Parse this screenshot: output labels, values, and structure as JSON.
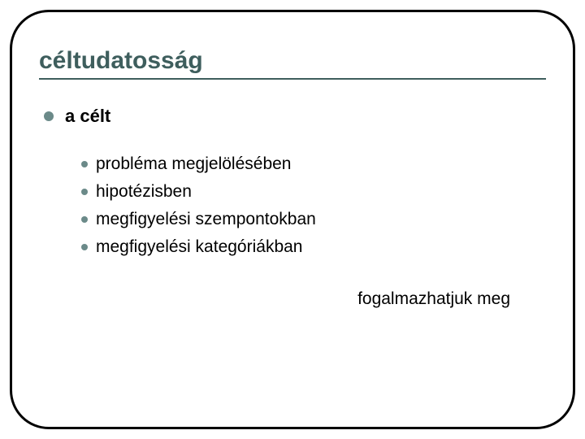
{
  "slide": {
    "title": "céltudatosság",
    "level1_text": "a célt",
    "level2_items": [
      "probléma megjelölésében",
      "hipotézisben",
      "megfigyelési szempontokban",
      "megfigyelési kategóriákban"
    ],
    "footer": "fogalmazhatjuk meg"
  },
  "style": {
    "frame_border_color": "#000000",
    "frame_border_width": 3,
    "frame_border_radius": 48,
    "title_color": "#3e5e5d",
    "title_fontsize": 30,
    "title_underline_color": "#3e5e5d",
    "bullet_color": "#6b8a89",
    "level1_fontsize": 22,
    "level2_fontsize": 21,
    "text_color": "#000000",
    "background_color": "#ffffff",
    "font_family": "Verdana"
  }
}
